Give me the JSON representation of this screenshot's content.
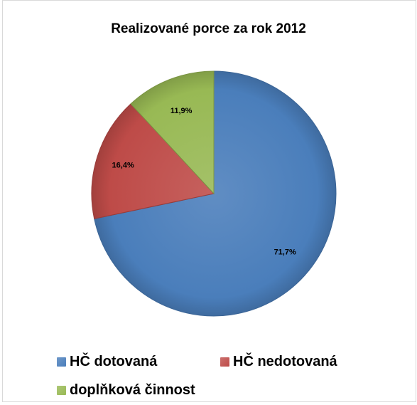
{
  "chart_data": {
    "type": "pie",
    "title": "Realizované porce za rok 2012",
    "slices": [
      {
        "name": "HČ dotovaná",
        "value": 71.7,
        "label": "71,7%",
        "color": "#4a7ebb"
      },
      {
        "name": "HČ nedotovaná",
        "value": 16.4,
        "label": "16,4%",
        "color": "#be4b48"
      },
      {
        "name": "doplňková činnost",
        "value": 11.9,
        "label": "11,9%",
        "color": "#98b954"
      }
    ],
    "legend_position": "bottom"
  }
}
